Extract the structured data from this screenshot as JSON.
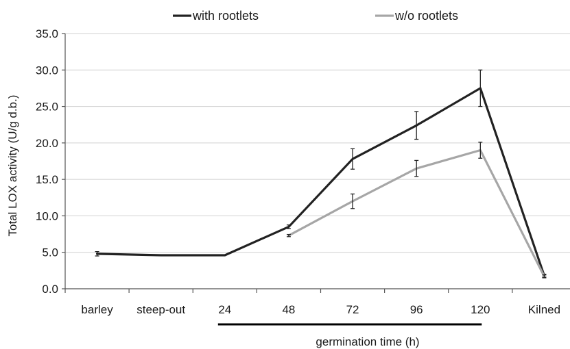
{
  "chart_data": {
    "type": "line",
    "categories": [
      "barley",
      "steep-out",
      "24",
      "48",
      "72",
      "96",
      "120",
      "Kilned"
    ],
    "ylabel": "Total LOX activity (U/g d.b.)",
    "xlabel": "germination time (h)",
    "ylim": [
      0,
      35
    ],
    "yticks": [
      "0.0",
      "5.0",
      "10.0",
      "15.0",
      "20.0",
      "25.0",
      "30.0",
      "35.0"
    ],
    "grid": "horizontal",
    "legend_position": "top",
    "series": [
      {
        "name": "with rootlets",
        "color": "#222222",
        "values": [
          4.8,
          4.6,
          4.6,
          8.5,
          17.8,
          22.4,
          27.5,
          1.8
        ],
        "errors": [
          0.3,
          0.05,
          0.05,
          0.25,
          1.4,
          1.9,
          2.5,
          0.2
        ]
      },
      {
        "name": "w/o rootlets",
        "color": "#a6a6a6",
        "values": [
          null,
          null,
          null,
          7.3,
          12.0,
          16.5,
          19.0,
          1.7
        ],
        "errors": [
          null,
          null,
          null,
          0.15,
          1.0,
          1.1,
          1.1,
          0.2
        ]
      }
    ]
  }
}
